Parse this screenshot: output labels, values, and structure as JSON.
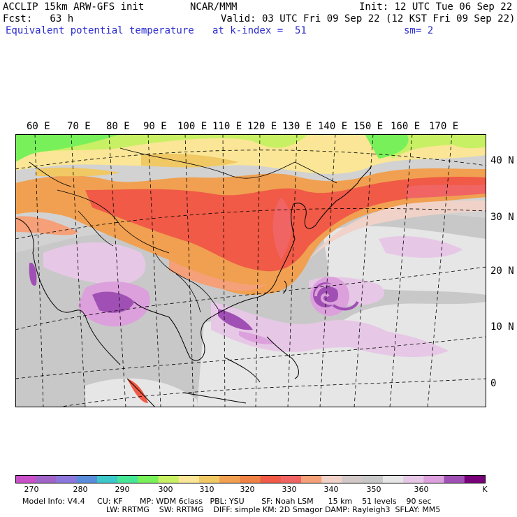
{
  "header": {
    "line1_left": "ACCLIP 15km ARW-GFS init",
    "line1_mid": "NCAR/MMM",
    "line1_right": "Init: 12 UTC Tue 06 Sep 22",
    "line2_left": "Fcst:   63 h",
    "line2_right": "Valid: 03 UTC Fri 09 Sep 22 (12 KST Fri 09 Sep 22)",
    "line3_field": "Equivalent potential temperature",
    "line3_level": "at k-index =  51",
    "line3_smooth": "sm= 2"
  },
  "lon_labels": [
    "60 E",
    "70 E",
    "80 E",
    "90 E",
    "100 E",
    "110 E",
    "120 E",
    "130 E",
    "140 E",
    "150 E",
    "160 E",
    "170 E"
  ],
  "lat_labels": [
    "40 N",
    "30 N",
    "20 N",
    "10 N",
    "0"
  ],
  "colorbar": {
    "unit": "K",
    "labels": [
      "270",
      "280",
      "290",
      "300",
      "310",
      "320",
      "330",
      "340",
      "350",
      "360"
    ],
    "colors": [
      "#c850c8",
      "#a064c8",
      "#8c78dc",
      "#5a8cdc",
      "#3cc8c8",
      "#46e696",
      "#78f05a",
      "#c8f064",
      "#fae696",
      "#f0c864",
      "#f0a050",
      "#f08246",
      "#f05a46",
      "#f06464",
      "#f5a078",
      "#f0d2c8",
      "#d2c8c8",
      "#c8c8c8",
      "#e6e6e6",
      "#e6c8e6",
      "#dca0dc",
      "#a050b4",
      "#780078"
    ]
  },
  "footer": {
    "line1": "Model Info: V4.4     CU: KF       MP: WDM 6class   PBL: YSU       SF: Noah LSM      15 km    51 levels    90 sec",
    "line2": "LW: RRTMG    SW: RRTMG    DIFF: simple KM: 2D Smagor DAMP: Rayleigh3  SFLAY: MM5"
  }
}
